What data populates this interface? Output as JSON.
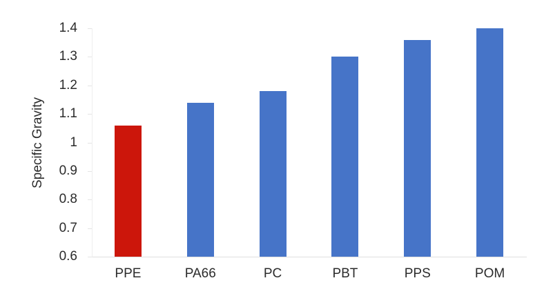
{
  "chart_data": {
    "type": "bar",
    "title": "",
    "xlabel": "",
    "ylabel": "Specific Gravity",
    "categories": [
      "PPE",
      "PA66",
      "PC",
      "PBT",
      "PPS",
      "POM"
    ],
    "values": [
      1.06,
      1.14,
      1.18,
      1.3,
      1.36,
      1.4
    ],
    "bar_colors": [
      "#cc160b",
      "#4674c8",
      "#4674c8",
      "#4674c8",
      "#4674c8",
      "#4674c8"
    ],
    "ylim": [
      0.6,
      1.4
    ],
    "yticks": [
      0.6,
      0.7,
      0.8,
      0.9,
      1,
      1.1,
      1.2,
      1.3,
      1.4
    ],
    "ytick_labels": [
      "0.6",
      "0.7",
      "0.8",
      "0.9",
      "1",
      "1.1",
      "1.2",
      "1.3",
      "1.4"
    ],
    "grid": false,
    "legend": "none",
    "colors": {
      "highlight_bar": "#cc160b",
      "default_bar": "#4674c8",
      "axis_line": "#dedede",
      "text": "#2b2b2b",
      "background": "#ffffff"
    }
  }
}
